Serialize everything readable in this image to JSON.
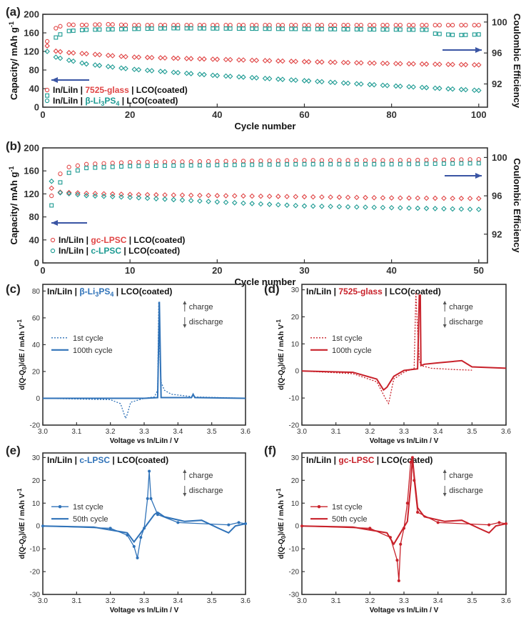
{
  "colors": {
    "red": "#e04545",
    "teal": "#1c9a92",
    "blue": "#2f72b8",
    "crimson": "#c8212a",
    "arrow": "#3a55a4",
    "axis": "#333333"
  },
  "chart_data": [
    {
      "panel": "(a)",
      "type": "scatter",
      "xlabel": "Cycle number",
      "ylabel": "Capacity/ mAh g",
      "ylabel_sup": "-1",
      "y2label": "Coulombic Efficiency",
      "xlim": [
        0,
        102
      ],
      "xticks": [
        0,
        20,
        40,
        60,
        80,
        100
      ],
      "ylim": [
        0,
        200
      ],
      "yticks": [
        0,
        40,
        80,
        120,
        160,
        200
      ],
      "y2lim": [
        89,
        101
      ],
      "y2ticks": [
        92,
        96,
        100
      ],
      "legend": [
        {
          "prefix": "In/LiIn | ",
          "name": "7525-glass",
          "suffix": " | LCO(coated)",
          "color": "#e04545"
        },
        {
          "prefix": "In/LiIn | ",
          "name": "β-Li3PS4",
          "name_main": "β-Li",
          "name_sub": "3",
          "name_after": "PS",
          "name_sub2": "4",
          "suffix": " | LCO(coated)",
          "color": "#1c9a92"
        }
      ],
      "series": [
        {
          "name": "7525-glass capacity",
          "axis": "left",
          "marker": "diamond",
          "color": "#e04545",
          "x": [
            1,
            2,
            5,
            10,
            20,
            40,
            60,
            80,
            100
          ],
          "y": [
            132,
            122,
            118,
            115,
            108,
            103,
            98,
            94,
            91
          ]
        },
        {
          "name": "β-Li3PS4 capacity",
          "axis": "left",
          "marker": "diamond",
          "color": "#1c9a92",
          "x": [
            1,
            2,
            5,
            10,
            20,
            40,
            60,
            80,
            100
          ],
          "y": [
            120,
            110,
            103,
            93,
            82,
            68,
            57,
            46,
            36
          ]
        },
        {
          "name": "7525-glass efficiency",
          "axis": "right",
          "marker": "circle",
          "color": "#e04545",
          "x": [
            1,
            3,
            5,
            8,
            15,
            20,
            40,
            60,
            80,
            100
          ],
          "y": [
            97.5,
            99.2,
            99.7,
            99.6,
            99.7,
            99.6,
            99.6,
            99.6,
            99.6,
            99.6
          ]
        },
        {
          "name": "β-Li3PS4 efficiency",
          "axis": "right",
          "marker": "square",
          "color": "#1c9a92",
          "x": [
            1,
            2,
            3,
            5,
            10,
            20,
            30,
            60,
            88,
            90,
            95,
            100
          ],
          "y": [
            90.5,
            95,
            98,
            98.8,
            99,
            99.1,
            99.2,
            99.1,
            99.0,
            98.5,
            98.3,
            98.4
          ]
        }
      ]
    },
    {
      "panel": "(b)",
      "type": "scatter",
      "xlabel": "Cycle number",
      "ylabel": "Capacity/ mAh g",
      "ylabel_sup": "-1",
      "y2label": "Coulombic Efficiency",
      "xlim": [
        0,
        51
      ],
      "xticks": [
        0,
        10,
        20,
        30,
        40,
        50
      ],
      "ylim": [
        0,
        200
      ],
      "yticks": [
        0,
        40,
        80,
        120,
        160,
        200
      ],
      "y2lim": [
        89,
        101
      ],
      "y2ticks": [
        92,
        96,
        100
      ],
      "legend": [
        {
          "prefix": "In/LiIn | ",
          "name": "gc-LPSC",
          "suffix": " | LCO(coated)",
          "color": "#e04545"
        },
        {
          "prefix": "In/LiIn | ",
          "name": "c-LPSC",
          "suffix": " | LCO(coated)",
          "color": "#1c9a92"
        }
      ],
      "series": [
        {
          "name": "gc-LPSC capacity",
          "axis": "left",
          "marker": "diamond",
          "color": "#e04545",
          "x": [
            1,
            2,
            5,
            10,
            20,
            30,
            40,
            50
          ],
          "y": [
            130,
            123,
            121,
            119,
            117,
            115,
            113,
            112
          ]
        },
        {
          "name": "c-LPSC capacity",
          "axis": "left",
          "marker": "diamond",
          "color": "#1c9a92",
          "x": [
            1,
            2,
            5,
            10,
            20,
            30,
            40,
            50
          ],
          "y": [
            142,
            122,
            117,
            114,
            106,
            99,
            96,
            93
          ]
        },
        {
          "name": "gc-LPSC efficiency",
          "axis": "right",
          "marker": "circle",
          "color": "#e04545",
          "x": [
            1,
            2,
            3,
            5,
            10,
            20,
            30,
            40,
            50
          ],
          "y": [
            96,
            98.3,
            99.0,
            99.3,
            99.5,
            99.6,
            99.7,
            99.7,
            99.8
          ]
        },
        {
          "name": "c-LPSC efficiency",
          "axis": "right",
          "marker": "square",
          "color": "#1c9a92",
          "x": [
            1,
            2,
            3,
            5,
            10,
            20,
            30,
            40,
            50
          ],
          "y": [
            95,
            97.4,
            98.4,
            98.9,
            99.1,
            99.2,
            99.3,
            99.3,
            99.4
          ]
        }
      ]
    },
    {
      "panel": "(c)",
      "type": "line",
      "title_prefix": "In/LiIn | ",
      "title_name": "β-Li",
      "title_sub": "3",
      "title_after": "PS",
      "title_sub2": "4",
      "title_suffix": " | LCO(coated)",
      "title_color": "#2f72b8",
      "xlabel": "Voltage vs In/LiIn / V",
      "ylabel": "d(Q-Q",
      "ylabel_sub": "0",
      "ylabel_rest": ")/dE / mAh V",
      "ylabel_sup": "-1",
      "xlim": [
        3.0,
        3.6
      ],
      "xticks": [
        "3.0",
        "3.1",
        "3.2",
        "3.3",
        "3.4",
        "3.5",
        "3.6"
      ],
      "ylim": [
        -20,
        85
      ],
      "yticks": [
        -20,
        0,
        20,
        40,
        60,
        80
      ],
      "annot": {
        "up": "charge",
        "down": "discharge"
      },
      "legend": [
        "1st cycle",
        "100th cycle"
      ],
      "series": [
        {
          "name": "1st cycle",
          "style": "dotted",
          "color": "#2f72b8",
          "x": [
            3.0,
            3.2,
            3.23,
            3.245,
            3.25,
            3.26,
            3.3,
            3.33,
            3.34,
            3.343,
            3.346,
            3.35,
            3.36,
            3.38,
            3.45,
            3.6
          ],
          "y": [
            0,
            -1,
            -4,
            -15,
            -12,
            -3,
            0,
            1,
            6,
            72,
            35,
            12,
            6,
            3,
            1,
            0
          ]
        },
        {
          "name": "100th cycle",
          "style": "solid",
          "color": "#2f72b8",
          "x": [
            3.0,
            3.3,
            3.34,
            3.345,
            3.35,
            3.44,
            3.445,
            3.45,
            3.6
          ],
          "y": [
            0,
            0,
            0.5,
            72,
            0.5,
            0.5,
            3,
            0.5,
            0
          ]
        }
      ]
    },
    {
      "panel": "(d)",
      "type": "line",
      "title_prefix": "In/LiIn | ",
      "title_name": "7525-glass",
      "title_suffix": " | LCO(coated)",
      "title_color": "#c8212a",
      "xlabel": "Voltage vs In/LiIn / V",
      "ylabel": "d(Q-Q",
      "ylabel_sub": "0",
      "ylabel_rest": ")/dE / mAh V",
      "ylabel_sup": "-1",
      "xlim": [
        3.0,
        3.6
      ],
      "xticks": [
        "3.0",
        "3.1",
        "3.2",
        "3.3",
        "3.4",
        "3.5",
        "3.6"
      ],
      "ylim": [
        -20,
        32
      ],
      "yticks": [
        -20,
        -10,
        0,
        10,
        20,
        30
      ],
      "annot": {
        "up": "charge",
        "down": "discharge"
      },
      "legend": [
        "1st cycle",
        "100th cycle"
      ],
      "series": [
        {
          "name": "1st cycle",
          "style": "dotted",
          "color": "#c8212a",
          "x": [
            3.0,
            3.15,
            3.22,
            3.245,
            3.255,
            3.27,
            3.3,
            3.33,
            3.335,
            3.34,
            3.345,
            3.35,
            3.38,
            3.45,
            3.5
          ],
          "y": [
            0,
            -1,
            -4,
            -10,
            -12,
            -3,
            -0.5,
            1,
            29,
            15,
            4,
            2,
            1,
            0.5,
            0.3
          ]
        },
        {
          "name": "100th cycle",
          "style": "solid",
          "color": "#c8212a",
          "x": [
            3.0,
            3.15,
            3.22,
            3.24,
            3.25,
            3.27,
            3.3,
            3.34,
            3.345,
            3.348,
            3.35,
            3.36,
            3.4,
            3.47,
            3.5,
            3.6
          ],
          "y": [
            0,
            -0.5,
            -3,
            -7,
            -6,
            -2,
            0.2,
            0.8,
            28,
            28,
            2,
            2.5,
            3,
            3.8,
            1.5,
            1
          ]
        }
      ]
    },
    {
      "panel": "(e)",
      "type": "line",
      "title_prefix": "In/LiIn | ",
      "title_name": "c-LPSC",
      "title_suffix": " | LCO(coated)",
      "title_color": "#2f72b8",
      "xlabel": "Voltage vs In/LiIn / V",
      "ylabel": "d(Q-Q",
      "ylabel_sub": "0",
      "ylabel_rest": ")/dE / mAh V",
      "ylabel_sup": "-1",
      "xlim": [
        3.0,
        3.6
      ],
      "xticks": [
        "3.0",
        "3.1",
        "3.2",
        "3.3",
        "3.4",
        "3.5",
        "3.6"
      ],
      "ylim": [
        -30,
        32
      ],
      "yticks": [
        -30,
        -20,
        -10,
        0,
        10,
        20,
        30
      ],
      "annot": {
        "up": "charge",
        "down": "discharge"
      },
      "legend": [
        "1st cycle",
        "50th cycle"
      ],
      "series": [
        {
          "name": "1st cycle",
          "style": "marker-line",
          "color": "#2f72b8",
          "x": [
            3.0,
            3.2,
            3.25,
            3.27,
            3.28,
            3.29,
            3.3,
            3.31,
            3.315,
            3.32,
            3.34,
            3.4,
            3.55,
            3.58,
            3.6
          ],
          "y": [
            0,
            -1,
            -4,
            -9,
            -14,
            -5,
            -1,
            12,
            24,
            12,
            5,
            1.5,
            0.5,
            1.5,
            1
          ]
        },
        {
          "name": "50th cycle",
          "style": "solid",
          "color": "#2f72b8",
          "x": [
            3.0,
            3.15,
            3.25,
            3.27,
            3.29,
            3.31,
            3.33,
            3.34,
            3.36,
            3.42,
            3.47,
            3.52,
            3.55,
            3.57,
            3.6
          ],
          "y": [
            0,
            -0.5,
            -3,
            -7,
            -3,
            1,
            5,
            6,
            4,
            2,
            2.5,
            -1,
            -3,
            0,
            1
          ]
        }
      ]
    },
    {
      "panel": "(f)",
      "type": "line",
      "title_prefix": "In/LiIn | ",
      "title_name": "gc-LPSC",
      "title_suffix": " | LCO(coated)",
      "title_color": "#c8212a",
      "xlabel": "Voltage vs In/LiIn / V",
      "ylabel": "d(Q-Q",
      "ylabel_sub": "0",
      "ylabel_rest": ")/dE / mAh V",
      "ylabel_sup": "-1",
      "xlim": [
        3.0,
        3.6
      ],
      "xticks": [
        "3.0",
        "3.1",
        "3.2",
        "3.3",
        "3.4",
        "3.5",
        "3.6"
      ],
      "ylim": [
        -30,
        32
      ],
      "yticks": [
        -30,
        -20,
        -10,
        0,
        10,
        20,
        30
      ],
      "annot": {
        "up": "charge",
        "down": "discharge"
      },
      "legend": [
        "1st cycle",
        "50th cycle"
      ],
      "series": [
        {
          "name": "1st cycle",
          "style": "marker-line",
          "color": "#c8212a",
          "x": [
            3.0,
            3.2,
            3.26,
            3.28,
            3.285,
            3.29,
            3.3,
            3.31,
            3.32,
            3.325,
            3.33,
            3.34,
            3.4,
            3.55,
            3.58,
            3.6
          ],
          "y": [
            0,
            -1,
            -5,
            -15,
            -24,
            -8,
            -1,
            10,
            28,
            30,
            20,
            6,
            1.5,
            0.5,
            1.5,
            1
          ]
        },
        {
          "name": "50th cycle",
          "style": "solid",
          "color": "#c8212a",
          "x": [
            3.0,
            3.15,
            3.25,
            3.27,
            3.29,
            3.31,
            3.32,
            3.325,
            3.33,
            3.34,
            3.36,
            3.42,
            3.47,
            3.52,
            3.55,
            3.57,
            3.6
          ],
          "y": [
            0,
            -0.5,
            -3,
            -8,
            -3,
            2,
            18,
            30,
            22,
            8,
            4,
            2,
            2.5,
            -1,
            -3,
            0,
            1
          ]
        }
      ]
    }
  ]
}
